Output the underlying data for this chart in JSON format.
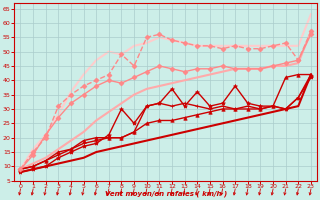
{
  "xlabel": "Vent moyen/en rafales ( km/h )",
  "xlim": [
    -0.5,
    23.5
  ],
  "ylim": [
    5,
    67
  ],
  "yticks": [
    5,
    10,
    15,
    20,
    25,
    30,
    35,
    40,
    45,
    50,
    55,
    60,
    65
  ],
  "xticks": [
    0,
    1,
    2,
    3,
    4,
    5,
    6,
    7,
    8,
    9,
    10,
    11,
    12,
    13,
    14,
    15,
    16,
    17,
    18,
    19,
    20,
    21,
    22,
    23
  ],
  "bg_color": "#cceee8",
  "grid_color": "#aacccc",
  "xlabel_color": "#cc0000",
  "tick_color": "#cc0000",
  "series": [
    {
      "x": [
        0,
        1,
        2,
        3,
        4,
        5,
        6,
        7,
        8,
        9,
        10,
        11,
        12,
        13,
        14,
        15,
        16,
        17,
        18,
        19,
        20,
        21,
        22,
        23
      ],
      "y": [
        8,
        9,
        10,
        11,
        12,
        13,
        15,
        16,
        17,
        18,
        19,
        20,
        21,
        22,
        23,
        24,
        25,
        26,
        27,
        28,
        29,
        30,
        31,
        42
      ],
      "color": "#cc0000",
      "linewidth": 1.5,
      "marker": null,
      "markersize": 0,
      "linestyle": "-",
      "zorder": 2
    },
    {
      "x": [
        0,
        1,
        2,
        3,
        4,
        5,
        6,
        7,
        8,
        9,
        10,
        11,
        12,
        13,
        14,
        15,
        16,
        17,
        18,
        19,
        20,
        21,
        22,
        23
      ],
      "y": [
        9,
        10,
        12,
        15,
        16,
        19,
        20,
        20,
        20,
        22,
        25,
        26,
        26,
        27,
        28,
        29,
        30,
        30,
        30,
        30,
        31,
        41,
        42,
        42
      ],
      "color": "#cc0000",
      "linewidth": 1.0,
      "marker": "^",
      "markersize": 2.5,
      "linestyle": "-",
      "zorder": 4
    },
    {
      "x": [
        0,
        1,
        2,
        3,
        4,
        5,
        6,
        7,
        8,
        9,
        10,
        11,
        12,
        13,
        14,
        15,
        16,
        17,
        18,
        19,
        20,
        21,
        22,
        23
      ],
      "y": [
        9,
        10,
        12,
        14,
        16,
        18,
        19,
        20,
        20,
        22,
        31,
        32,
        31,
        32,
        31,
        30,
        31,
        30,
        31,
        30,
        31,
        30,
        34,
        42
      ],
      "color": "#cc0000",
      "linewidth": 1.0,
      "marker": "+",
      "markersize": 3,
      "linestyle": "-",
      "zorder": 4
    },
    {
      "x": [
        0,
        1,
        2,
        3,
        4,
        5,
        6,
        7,
        8,
        9,
        10,
        11,
        12,
        13,
        14,
        15,
        16,
        17,
        18,
        19,
        20,
        21,
        22,
        23
      ],
      "y": [
        8,
        9,
        10,
        13,
        15,
        17,
        18,
        21,
        30,
        25,
        31,
        32,
        37,
        31,
        36,
        31,
        32,
        38,
        32,
        31,
        31,
        30,
        34,
        41
      ],
      "color": "#cc0000",
      "linewidth": 1.0,
      "marker": "*",
      "markersize": 3,
      "linestyle": "-",
      "zorder": 3
    },
    {
      "x": [
        0,
        1,
        2,
        3,
        4,
        5,
        6,
        7,
        8,
        9,
        10,
        11,
        12,
        13,
        14,
        15,
        16,
        17,
        18,
        19,
        20,
        21,
        22,
        23
      ],
      "y": [
        9,
        11,
        13,
        16,
        19,
        22,
        26,
        29,
        32,
        35,
        37,
        38,
        39,
        40,
        41,
        42,
        43,
        44,
        44,
        44,
        45,
        45,
        46,
        57
      ],
      "color": "#ffaaaa",
      "linewidth": 1.5,
      "marker": null,
      "markersize": 0,
      "linestyle": "-",
      "zorder": 2
    },
    {
      "x": [
        0,
        1,
        2,
        3,
        4,
        5,
        6,
        7,
        8,
        9,
        10,
        11,
        12,
        13,
        14,
        15,
        16,
        17,
        18,
        19,
        20,
        21,
        22,
        23
      ],
      "y": [
        9,
        14,
        21,
        27,
        32,
        35,
        38,
        40,
        39,
        41,
        43,
        45,
        44,
        43,
        44,
        44,
        45,
        44,
        44,
        44,
        45,
        46,
        47,
        56
      ],
      "color": "#ff8888",
      "linewidth": 1.0,
      "marker": "D",
      "markersize": 2.5,
      "linestyle": "-",
      "zorder": 4
    },
    {
      "x": [
        0,
        1,
        2,
        3,
        4,
        5,
        6,
        7,
        8,
        9,
        10,
        11,
        12,
        13,
        14,
        15,
        16,
        17,
        18,
        19,
        20,
        21,
        22,
        23
      ],
      "y": [
        9,
        15,
        20,
        31,
        35,
        38,
        40,
        42,
        49,
        45,
        55,
        56,
        54,
        53,
        52,
        52,
        51,
        52,
        51,
        51,
        52,
        53,
        47,
        57
      ],
      "color": "#ff8888",
      "linewidth": 1.0,
      "marker": "D",
      "markersize": 2.5,
      "linestyle": "--",
      "zorder": 3
    },
    {
      "x": [
        0,
        1,
        2,
        3,
        4,
        5,
        6,
        7,
        8,
        9,
        10,
        11,
        12,
        13,
        14,
        15,
        16,
        17,
        18,
        19,
        20,
        21,
        22,
        23
      ],
      "y": [
        9,
        16,
        21,
        28,
        36,
        42,
        47,
        50,
        49,
        52,
        53,
        55,
        54,
        53,
        52,
        52,
        52,
        52,
        52,
        52,
        52,
        52,
        52,
        63
      ],
      "color": "#ffcccc",
      "linewidth": 1.5,
      "marker": null,
      "markersize": 0,
      "linestyle": "-",
      "zorder": 1
    }
  ]
}
